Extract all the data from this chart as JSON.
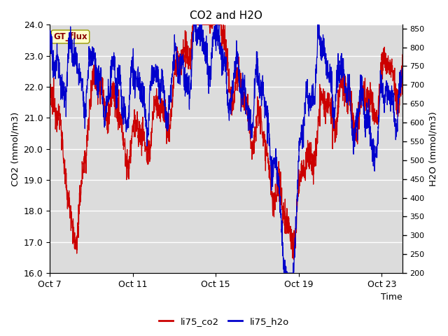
{
  "title": "CO2 and H2O",
  "xlabel": "Time",
  "ylabel_left": "CO2 (mmol/m3)",
  "ylabel_right": "H2O (mmol/m3)",
  "tag_label": "GT_flux",
  "legend_entries": [
    "li75_co2",
    "li75_h2o"
  ],
  "co2_color": "#cc0000",
  "h2o_color": "#0000cc",
  "co2_ylim": [
    16.0,
    24.0
  ],
  "h2o_ylim": [
    200,
    860
  ],
  "x_tick_labels": [
    "Oct 7",
    "Oct 11",
    "Oct 15",
    "Oct 19",
    "Oct 23"
  ],
  "x_tick_positions": [
    0,
    4,
    8,
    12,
    16
  ],
  "plot_bg_color": "#dcdcdc",
  "n_points": 2000,
  "linewidth": 0.9
}
